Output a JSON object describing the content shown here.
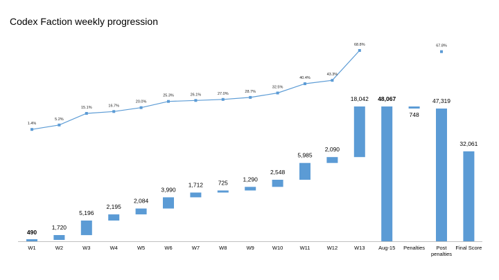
{
  "chart_data": {
    "type": "waterfall",
    "title": "Codex Faction weekly progression",
    "colors": {
      "bar": "#5b9bd5",
      "line": "#5b9bd5",
      "axis": "#bfbfbf",
      "text": "#000000"
    },
    "bars": [
      {
        "category": "W1",
        "label": "490",
        "start": 0,
        "end": 490,
        "bold": true
      },
      {
        "category": "W2",
        "label": "1,720",
        "start": 490,
        "end": 2210
      },
      {
        "category": "W3",
        "label": "5,196",
        "start": 2210,
        "end": 7406
      },
      {
        "category": "W4",
        "label": "2,195",
        "start": 7406,
        "end": 9601
      },
      {
        "category": "W5",
        "label": "2,084",
        "start": 9601,
        "end": 11685
      },
      {
        "category": "W6",
        "label": "3,990",
        "start": 11685,
        "end": 15675
      },
      {
        "category": "W7",
        "label": "1,712",
        "start": 15675,
        "end": 17387
      },
      {
        "category": "W8",
        "label": "725",
        "start": 17387,
        "end": 18112
      },
      {
        "category": "W9",
        "label": "1,290",
        "start": 18112,
        "end": 19402
      },
      {
        "category": "W10",
        "label": "2,548",
        "start": 19402,
        "end": 21950
      },
      {
        "category": "W11",
        "label": "5,985",
        "start": 21950,
        "end": 27935
      },
      {
        "category": "W12",
        "label": "2,090",
        "start": 27935,
        "end": 30025
      },
      {
        "category": "W13",
        "label": "18,042",
        "start": 30025,
        "end": 48067
      },
      {
        "category": "Aug-15",
        "label": "48,067",
        "start": 0,
        "end": 48067,
        "bold": true
      },
      {
        "category": "Penalties",
        "label": "748",
        "start": 47319,
        "end": 48067,
        "label_below": true
      },
      {
        "category": "Post penalties",
        "category_lines": [
          "Post",
          "penalties"
        ],
        "label": "47,319",
        "start": 0,
        "end": 47319
      },
      {
        "category": "Final Score",
        "label": "32,061",
        "start": 0,
        "end": 32061
      }
    ],
    "line_series": {
      "name": "cumulative percent",
      "points": [
        {
          "category": "W1",
          "value": 1.4,
          "label": "1.4%"
        },
        {
          "category": "W2",
          "value": 5.2,
          "label": "5.2%"
        },
        {
          "category": "W3",
          "value": 15.1,
          "label": "15.1%"
        },
        {
          "category": "W4",
          "value": 16.7,
          "label": "16.7%"
        },
        {
          "category": "W5",
          "value": 20.0,
          "label": "20.0%"
        },
        {
          "category": "W6",
          "value": 25.3,
          "label": "25.3%"
        },
        {
          "category": "W7",
          "value": 26.1,
          "label": "26.1%"
        },
        {
          "category": "W8",
          "value": 27.0,
          "label": "27.0%"
        },
        {
          "category": "W9",
          "value": 28.7,
          "label": "28.7%"
        },
        {
          "category": "W10",
          "value": 32.5,
          "label": "32.5%"
        },
        {
          "category": "W11",
          "value": 40.4,
          "label": "40.4%"
        },
        {
          "category": "W12",
          "value": 43.3,
          "label": "43.3%"
        },
        {
          "category": "W13",
          "value": 68.8,
          "label": "68.8%"
        }
      ],
      "extra_point": {
        "category": "Post penalties",
        "value": 67.8,
        "label": "67.8%"
      }
    }
  }
}
